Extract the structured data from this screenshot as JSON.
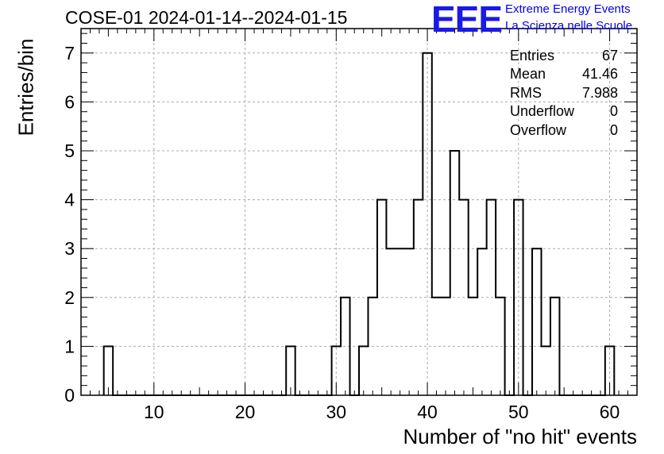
{
  "title": "COSE-01 2024-01-14--2024-01-15",
  "logo": {
    "text": "EEE",
    "line1": "Extreme Energy Events",
    "line2": "La Scienza nelle Scuole",
    "color": "#1a1ae6"
  },
  "stats": [
    {
      "label": "Entries",
      "value": "67"
    },
    {
      "label": "Mean",
      "value": "41.46"
    },
    {
      "label": "RMS",
      "value": "7.988"
    },
    {
      "label": "Underflow",
      "value": "0"
    },
    {
      "label": "Overflow",
      "value": "0"
    }
  ],
  "chart_data": {
    "type": "bar",
    "style": "step-histogram",
    "xlabel": "Number of \"no hit\" events",
    "ylabel": "Entries/bin",
    "xlim": [
      2,
      63
    ],
    "ylim": [
      0,
      7.5
    ],
    "bin_width": 1,
    "grid": true,
    "xticks": [
      10,
      20,
      30,
      40,
      50,
      60
    ],
    "yticks": [
      0,
      1,
      2,
      3,
      4,
      5,
      6,
      7
    ],
    "bins": [
      {
        "x": 5,
        "count": 1
      },
      {
        "x": 25,
        "count": 1
      },
      {
        "x": 30,
        "count": 1
      },
      {
        "x": 31,
        "count": 2
      },
      {
        "x": 33,
        "count": 1
      },
      {
        "x": 34,
        "count": 2
      },
      {
        "x": 35,
        "count": 4
      },
      {
        "x": 36,
        "count": 3
      },
      {
        "x": 37,
        "count": 3
      },
      {
        "x": 38,
        "count": 3
      },
      {
        "x": 39,
        "count": 4
      },
      {
        "x": 40,
        "count": 7
      },
      {
        "x": 41,
        "count": 2
      },
      {
        "x": 42,
        "count": 2
      },
      {
        "x": 43,
        "count": 5
      },
      {
        "x": 44,
        "count": 4
      },
      {
        "x": 45,
        "count": 2
      },
      {
        "x": 46,
        "count": 3
      },
      {
        "x": 47,
        "count": 4
      },
      {
        "x": 48,
        "count": 2
      },
      {
        "x": 50,
        "count": 4
      },
      {
        "x": 52,
        "count": 3
      },
      {
        "x": 53,
        "count": 1
      },
      {
        "x": 54,
        "count": 2
      },
      {
        "x": 60,
        "count": 1
      }
    ]
  }
}
